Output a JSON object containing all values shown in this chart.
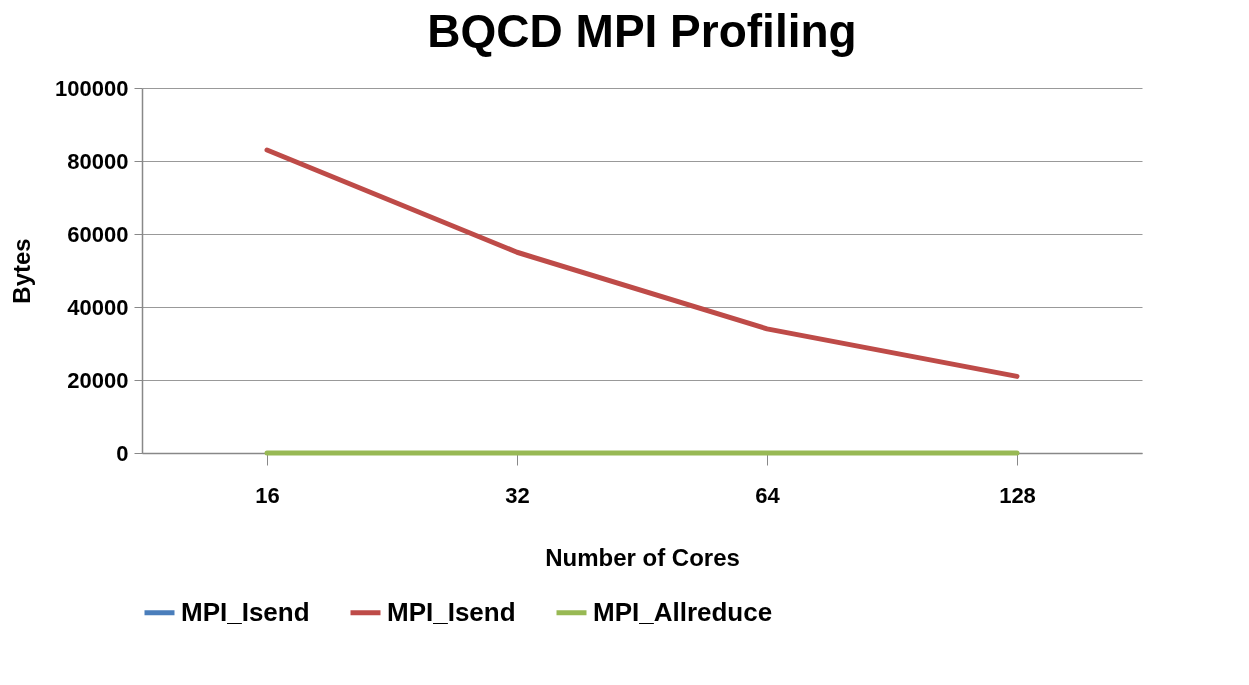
{
  "chart_data": {
    "type": "line",
    "title": "BQCD MPI Profiling",
    "xlabel": "Number of Cores",
    "ylabel": "Bytes",
    "categories": [
      "16",
      "32",
      "64",
      "128"
    ],
    "series": [
      {
        "name": "MPI_Isend",
        "color": "#4a7ebb",
        "values": [
          null,
          null,
          null,
          null
        ]
      },
      {
        "name": "MPI_Isend",
        "color": "#be4b48",
        "values": [
          83000,
          55000,
          34000,
          21000
        ]
      },
      {
        "name": "MPI_Allreduce",
        "color": "#98b954",
        "values": [
          0,
          0,
          0,
          0
        ]
      }
    ],
    "ylim": [
      0,
      100000
    ],
    "yticks": [
      0,
      20000,
      40000,
      60000,
      80000,
      100000
    ],
    "grid": "y",
    "legend": "bottom",
    "marker": "none",
    "line_style": "solid"
  }
}
